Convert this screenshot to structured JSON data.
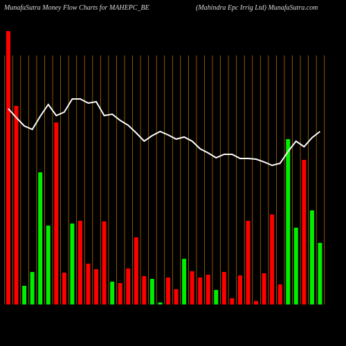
{
  "chart_data": {
    "type": "bar",
    "title": "MunafaSutra  Money Flow  Charts for MAHEPC_BE",
    "subtitle": "(Mahindra  Epc  Irrig Ltd) MunafaSutra.com",
    "ylim": [
      0,
      400
    ],
    "values": [
      395,
      287,
      27,
      47,
      191,
      114,
      263,
      46,
      117,
      121,
      59,
      51,
      120,
      33,
      31,
      52,
      97,
      41,
      37,
      3,
      39,
      22,
      66,
      48,
      39,
      43,
      21,
      47,
      9,
      42,
      121,
      5,
      45,
      130,
      29,
      239,
      111,
      209,
      136,
      89
    ],
    "colors": [
      "#ff0000",
      "#ff0000",
      "#00ee00",
      "#00ee00",
      "#00ee00",
      "#00ee00",
      "#ff0000",
      "#ff0000",
      "#00ee00",
      "#ff0000",
      "#ff0000",
      "#ff0000",
      "#ff0000",
      "#00ee00",
      "#ff0000",
      "#ff0000",
      "#ff0000",
      "#ff0000",
      "#00ee00",
      "#00ee00",
      "#ff0000",
      "#ff0000",
      "#00ee00",
      "#ff0000",
      "#ff0000",
      "#ff0000",
      "#00ee00",
      "#ff0000",
      "#ff0000",
      "#ff0000",
      "#ff0000",
      "#ff0000",
      "#ff0000",
      "#ff0000",
      "#ff0000",
      "#00ee00",
      "#00ee00",
      "#ff0000",
      "#00ee00",
      "#00ee00"
    ],
    "line": {
      "color": "#ffffff",
      "values": [
        283,
        270,
        258,
        253,
        272,
        289,
        273,
        278,
        297,
        297,
        291,
        293,
        273,
        275,
        266,
        259,
        248,
        236,
        244,
        250,
        245,
        239,
        242,
        236,
        225,
        219,
        212,
        217,
        217,
        211,
        211,
        210,
        206,
        201,
        204,
        221,
        236,
        228,
        241,
        250
      ]
    }
  }
}
